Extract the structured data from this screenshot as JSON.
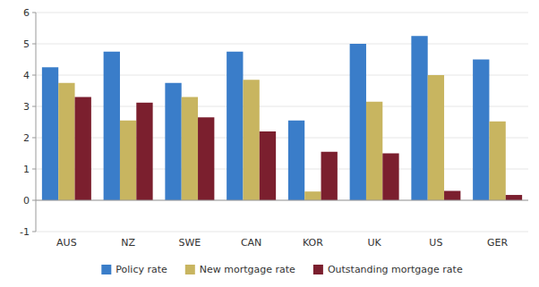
{
  "chart_data": {
    "type": "bar",
    "categories": [
      "AUS",
      "NZ",
      "SWE",
      "CAN",
      "KOR",
      "UK",
      "US",
      "GER"
    ],
    "series": [
      {
        "name": "Policy rate",
        "color": "#3A7DC9",
        "values": [
          4.25,
          4.75,
          3.75,
          4.75,
          2.55,
          5.0,
          5.25,
          4.5
        ]
      },
      {
        "name": "New mortgage rate",
        "color": "#C8B560",
        "values": [
          3.75,
          2.55,
          3.3,
          3.85,
          0.28,
          3.15,
          4.0,
          2.52
        ]
      },
      {
        "name": "Outstanding mortgage rate",
        "color": "#7B1F2E",
        "values": [
          3.3,
          3.12,
          2.65,
          2.2,
          1.55,
          1.5,
          0.3,
          0.17
        ]
      }
    ],
    "ylim": [
      -1,
      6
    ],
    "yticks": [
      -1,
      0,
      1,
      2,
      3,
      4,
      5,
      6
    ],
    "grid": true,
    "legend": "bottom"
  }
}
